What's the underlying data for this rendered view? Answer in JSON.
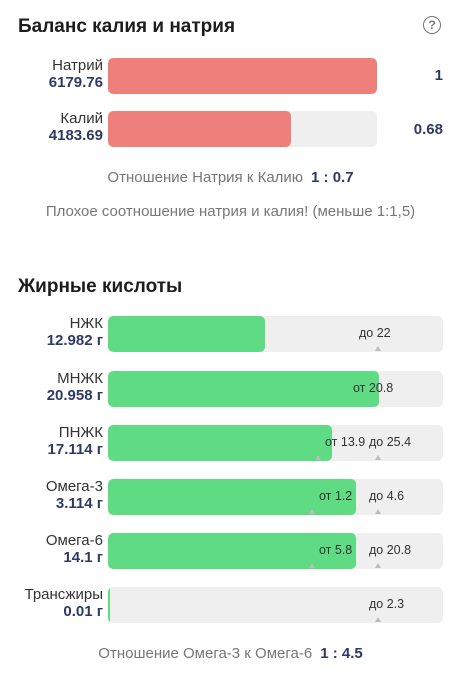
{
  "balance": {
    "title": "Баланс калия и натрия",
    "sodium": {
      "label": "Натрий",
      "value": "6179.76",
      "ratio": "1",
      "fill_fraction": 1.0
    },
    "potassium": {
      "label": "Калий",
      "value": "4183.69",
      "ratio": "0.68",
      "fill_fraction": 0.68
    },
    "ratio_label": "Отношение Натрия к Калию",
    "ratio_value": "1 : 0.7",
    "warning": "Плохое соотношение натрия и калия! (меньше 1:1,5)"
  },
  "fats": {
    "title": "Жирные кислоты",
    "rows": [
      {
        "label": "НЖК",
        "value": "12.982 г",
        "fill_fraction": 0.47,
        "min_label": "",
        "max_label": "до 22"
      },
      {
        "label": "МНЖК",
        "value": "20.958 г",
        "fill_fraction": 0.81,
        "min_label": "от 20.8",
        "max_label": ""
      },
      {
        "label": "ПНЖК",
        "value": "17.114 г",
        "fill_fraction": 0.67,
        "min_label": "от 13.9",
        "max_label": "до 25.4"
      },
      {
        "label": "Омега-3",
        "value": "3.114 г",
        "fill_fraction": 0.74,
        "min_label": "от 1.2",
        "max_label": "до 4.6"
      },
      {
        "label": "Омега-6",
        "value": "14.1 г",
        "fill_fraction": 0.74,
        "min_label": "от 5.8",
        "max_label": "до 20.8"
      },
      {
        "label": "Трансжиры",
        "value": "0.01 г",
        "fill_fraction": 0.004,
        "min_label": "",
        "max_label": "до 2.3"
      }
    ],
    "ratio_label": "Отношение Омега-3 к Омега-6",
    "ratio_value": "1 : 4.5"
  },
  "colors": {
    "sodium_bar": "#ef7f7b",
    "fat_bar": "#5fdb84",
    "track": "#efefef",
    "value_text": "#2e3a66"
  },
  "icons": {
    "help": "question-circle-icon"
  }
}
